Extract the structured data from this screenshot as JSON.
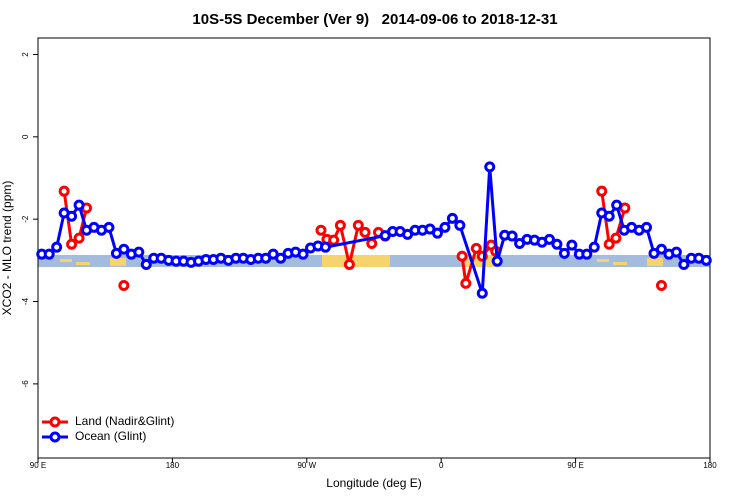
{
  "chart_data": {
    "type": "line",
    "title": "10S-5S December (Ver 9)   2014-09-06 to 2018-12-31",
    "x_label": "Longitude (deg E)",
    "y_label": "XCO2 - MLO trend (ppm)",
    "xlim": [
      90,
      540
    ],
    "xticks": [
      {
        "value": 90,
        "label": "90 E"
      },
      180,
      {
        "value": 270,
        "label": "90 W"
      },
      {
        "value": 360,
        "label": "0"
      },
      {
        "value": 450,
        "label": "90 E"
      },
      {
        "value": 540,
        "label": "180"
      }
    ],
    "ylim": [
      -7.8,
      2.4
    ],
    "yticks": [
      -6,
      -4,
      -2,
      0,
      2
    ],
    "legend": "bottom-left",
    "series": [
      {
        "name": "Land (Nadir&Glint)",
        "color": "#ff0000",
        "x": [
          107.5,
          112.5,
          117.5,
          122.5,
          null,
          147.5,
          null,
          279.5,
          283.5,
          288,
          292.5,
          298.5,
          304.5,
          309,
          313.5,
          318,
          322.5,
          null,
          374,
          376.5,
          383.5,
          387.5,
          393.5,
          396.5,
          null,
          467.5,
          472.5,
          477,
          483,
          null,
          507.5
        ],
        "values": [
          -1.32,
          -2.61,
          -2.46,
          -1.73,
          null,
          -3.61,
          null,
          -2.27,
          -2.49,
          -2.51,
          -2.15,
          -3.1,
          -2.15,
          -2.32,
          -2.59,
          -2.32,
          -2.41,
          null,
          -2.9,
          -3.56,
          -2.71,
          -2.9,
          -2.63,
          -2.78,
          null,
          -1.32,
          -2.61,
          -2.46,
          -1.73,
          null,
          -3.61
        ]
      },
      {
        "name": "Ocean (Glint)",
        "color": "#0000ff",
        "x": [
          92.5,
          97.5,
          102.5,
          107.5,
          112.5,
          117.5,
          122.5,
          127.5,
          132.5,
          137.5,
          142.5,
          147.5,
          152.5,
          157.5,
          162.5,
          167.5,
          172.5,
          177.5,
          182.5,
          187.5,
          192.5,
          197.5,
          202.5,
          207.5,
          212.5,
          217.5,
          222.5,
          227.5,
          232.5,
          237.5,
          242.5,
          247.5,
          252.5,
          257.5,
          262.5,
          267.5,
          272.5,
          277.5,
          282.5,
          322.5,
          327.5,
          332.5,
          337.5,
          342.5,
          347.5,
          352.5,
          357.5,
          362.5,
          367.5,
          372.5,
          387.5,
          392.5,
          397.5,
          402.5,
          407.5,
          412.5,
          417.5,
          422.5,
          427.5,
          432.5,
          437.5,
          442.5,
          447.5,
          452.5,
          457.5,
          462.5,
          467.5,
          472.5,
          477.5,
          482.5,
          487.5,
          492.5,
          497.5,
          502.5,
          507.5,
          512.5,
          517.5,
          522.5,
          527.5,
          532.5,
          537.5
        ],
        "values": [
          -2.85,
          -2.85,
          -2.68,
          -1.85,
          -1.93,
          -1.66,
          -2.27,
          -2.2,
          -2.27,
          -2.2,
          -2.83,
          -2.73,
          -2.85,
          -2.8,
          -3.1,
          -2.95,
          -2.95,
          -3.0,
          -3.02,
          -3.02,
          -3.05,
          -3.02,
          -2.98,
          -2.98,
          -2.95,
          -3.0,
          -2.95,
          -2.95,
          -2.98,
          -2.95,
          -2.95,
          -2.85,
          -2.95,
          -2.83,
          -2.8,
          -2.85,
          -2.7,
          -2.65,
          -2.68,
          -2.4,
          -2.3,
          -2.3,
          -2.37,
          -2.27,
          -2.27,
          -2.24,
          -2.34,
          -2.2,
          -1.98,
          -2.15,
          -3.8,
          -0.73,
          -3.02,
          -2.39,
          -2.41,
          -2.59,
          -2.49,
          -2.51,
          -2.56,
          -2.49,
          -2.61,
          -2.83,
          -2.63,
          -2.85,
          -2.85,
          -2.68,
          -1.85,
          -1.93,
          -1.66,
          -2.27,
          -2.2,
          -2.27,
          -2.2,
          -2.83,
          -2.73,
          -2.85,
          -2.8,
          -3.1,
          -2.95,
          -2.95,
          -3.0
        ]
      }
    ]
  }
}
